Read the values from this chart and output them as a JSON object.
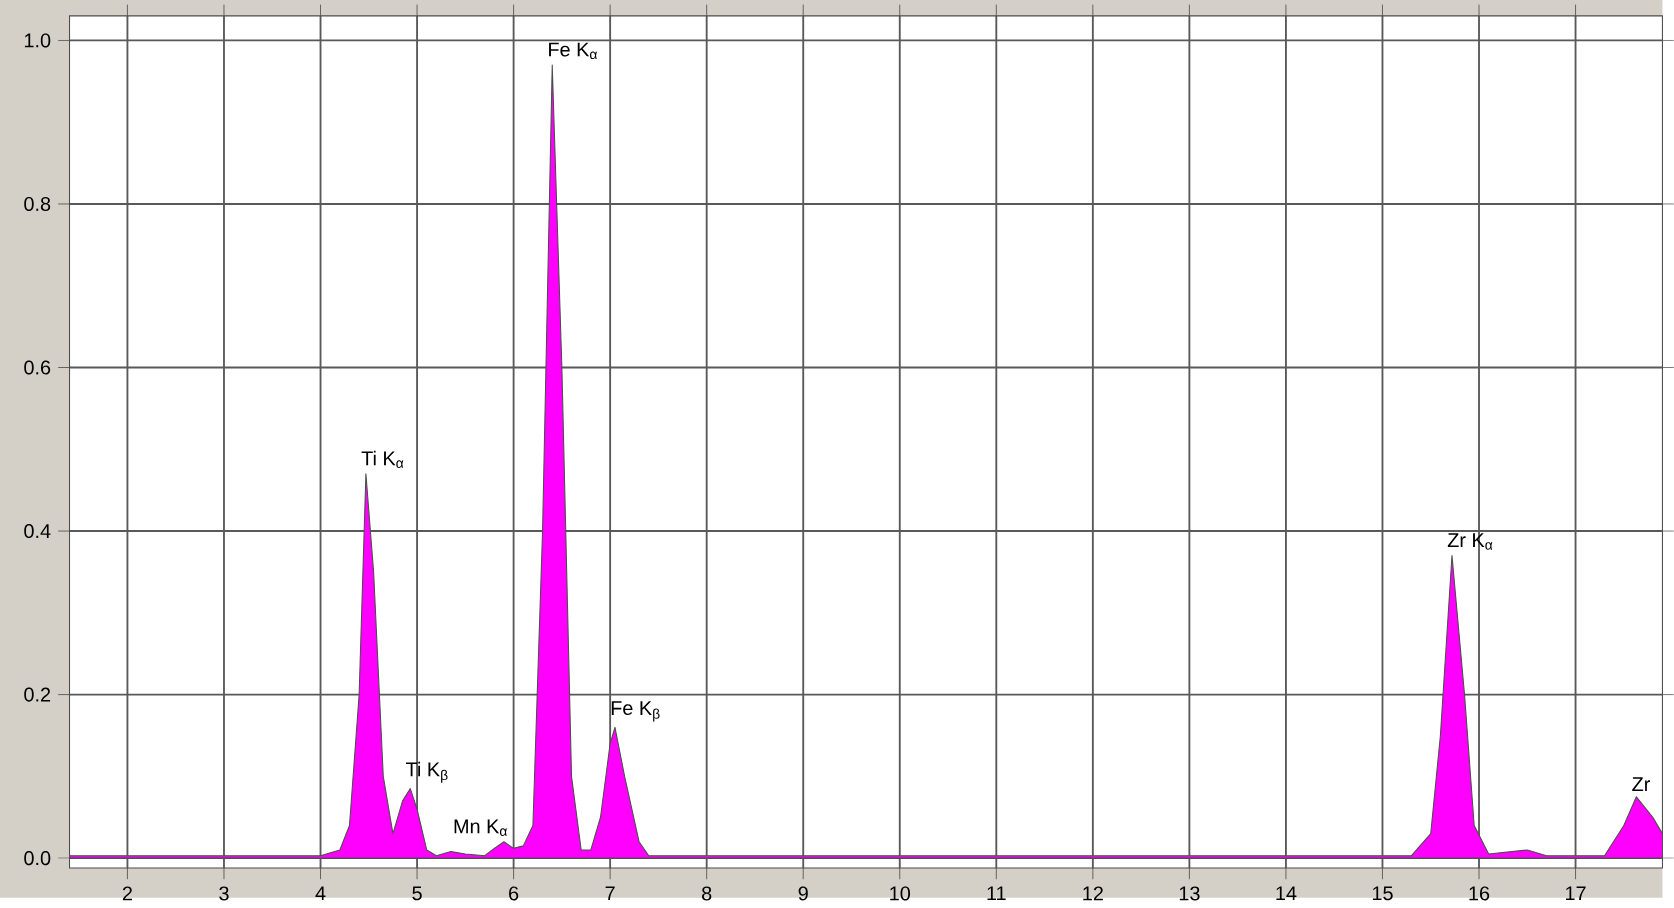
{
  "chart_data": {
    "type": "area",
    "color": "#ff00ff",
    "grid": true,
    "x": [
      1.4,
      2.5,
      3.5,
      4.0,
      4.2,
      4.3,
      4.4,
      4.47,
      4.55,
      4.65,
      4.75,
      4.85,
      4.93,
      5.0,
      5.1,
      5.2,
      5.35,
      5.5,
      5.7,
      5.8,
      5.9,
      6.0,
      6.1,
      6.2,
      6.3,
      6.4,
      6.5,
      6.6,
      6.7,
      6.8,
      6.9,
      7.0,
      7.05,
      7.15,
      7.3,
      7.4,
      9.0,
      12.0,
      15.3,
      15.5,
      15.6,
      15.72,
      15.85,
      15.95,
      16.1,
      16.5,
      16.7,
      17.3,
      17.5,
      17.63,
      17.8,
      17.9
    ],
    "values": [
      0.003,
      0.003,
      0.003,
      0.003,
      0.01,
      0.04,
      0.2,
      0.47,
      0.35,
      0.1,
      0.03,
      0.07,
      0.085,
      0.06,
      0.01,
      0.003,
      0.008,
      0.005,
      0.003,
      0.012,
      0.02,
      0.012,
      0.015,
      0.04,
      0.4,
      0.97,
      0.6,
      0.1,
      0.01,
      0.01,
      0.05,
      0.14,
      0.16,
      0.1,
      0.02,
      0.003,
      0.003,
      0.003,
      0.003,
      0.03,
      0.15,
      0.37,
      0.2,
      0.04,
      0.005,
      0.01,
      0.003,
      0.003,
      0.04,
      0.075,
      0.05,
      0.03
    ],
    "xlim": [
      1.4,
      17.9
    ],
    "ylim": [
      -0.012,
      1.03
    ],
    "xticks": [
      2,
      3,
      4,
      5,
      6,
      7,
      8,
      9,
      10,
      11,
      12,
      13,
      14,
      15,
      16,
      17
    ],
    "yticks": [
      {
        "value": 0,
        "label": "0.0"
      },
      0.2,
      0.4,
      0.6,
      0.8,
      {
        "value": 1,
        "label": "1.0"
      }
    ],
    "annotations": [
      {
        "text": "Ti K$_{α}$",
        "x": 4.47,
        "y": 0.47
      },
      {
        "text": "Ti K$_{β}$",
        "x": 4.93,
        "y": 0.085
      },
      {
        "text": "Mn K$_{α}$",
        "x": 5.9,
        "y": 0.02
      },
      {
        "text": "Fe K$_{α}$",
        "x": 6.4,
        "y": 0.97
      },
      {
        "text": "Fe K$_{β}$",
        "x": 7.05,
        "y": 0.16
      },
      {
        "text": "Zr K$_{α}$",
        "x": 15.72,
        "y": 0.37
      },
      {
        "text": "Zr",
        "x": 17.63,
        "y": 0.075
      }
    ]
  }
}
